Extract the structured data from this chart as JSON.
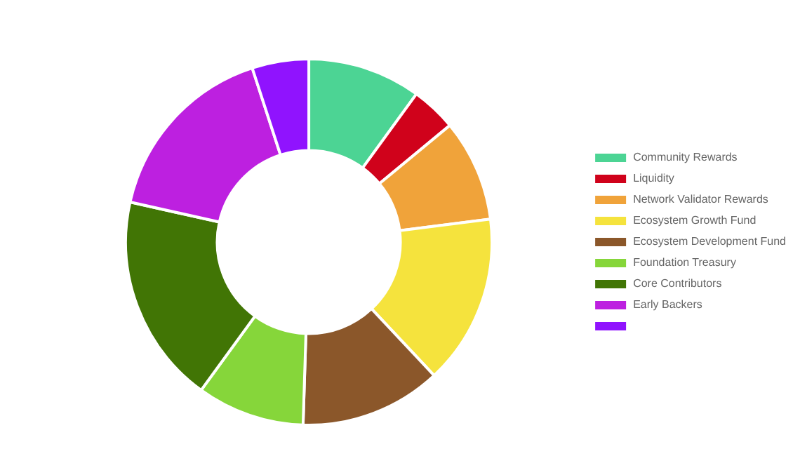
{
  "chart_data": {
    "type": "donut",
    "categories": [
      "Community Rewards",
      "Liquidity",
      "Network Validator Rewards",
      "Ecosystem Growth Fund",
      "Ecosystem Development Fund",
      "Foundation Treasury",
      "Core Contributors",
      "Early Backers",
      null
    ],
    "values": [
      10,
      4,
      9,
      15,
      12.5,
      9.5,
      18.5,
      16.5,
      5
    ],
    "colors": [
      "#4cd494",
      "#d0021b",
      "#f0a33a",
      "#f5e33d",
      "#8b572a",
      "#86d63a",
      "#417505",
      "#bd20e0",
      "#9013fe"
    ],
    "legend": "right"
  }
}
